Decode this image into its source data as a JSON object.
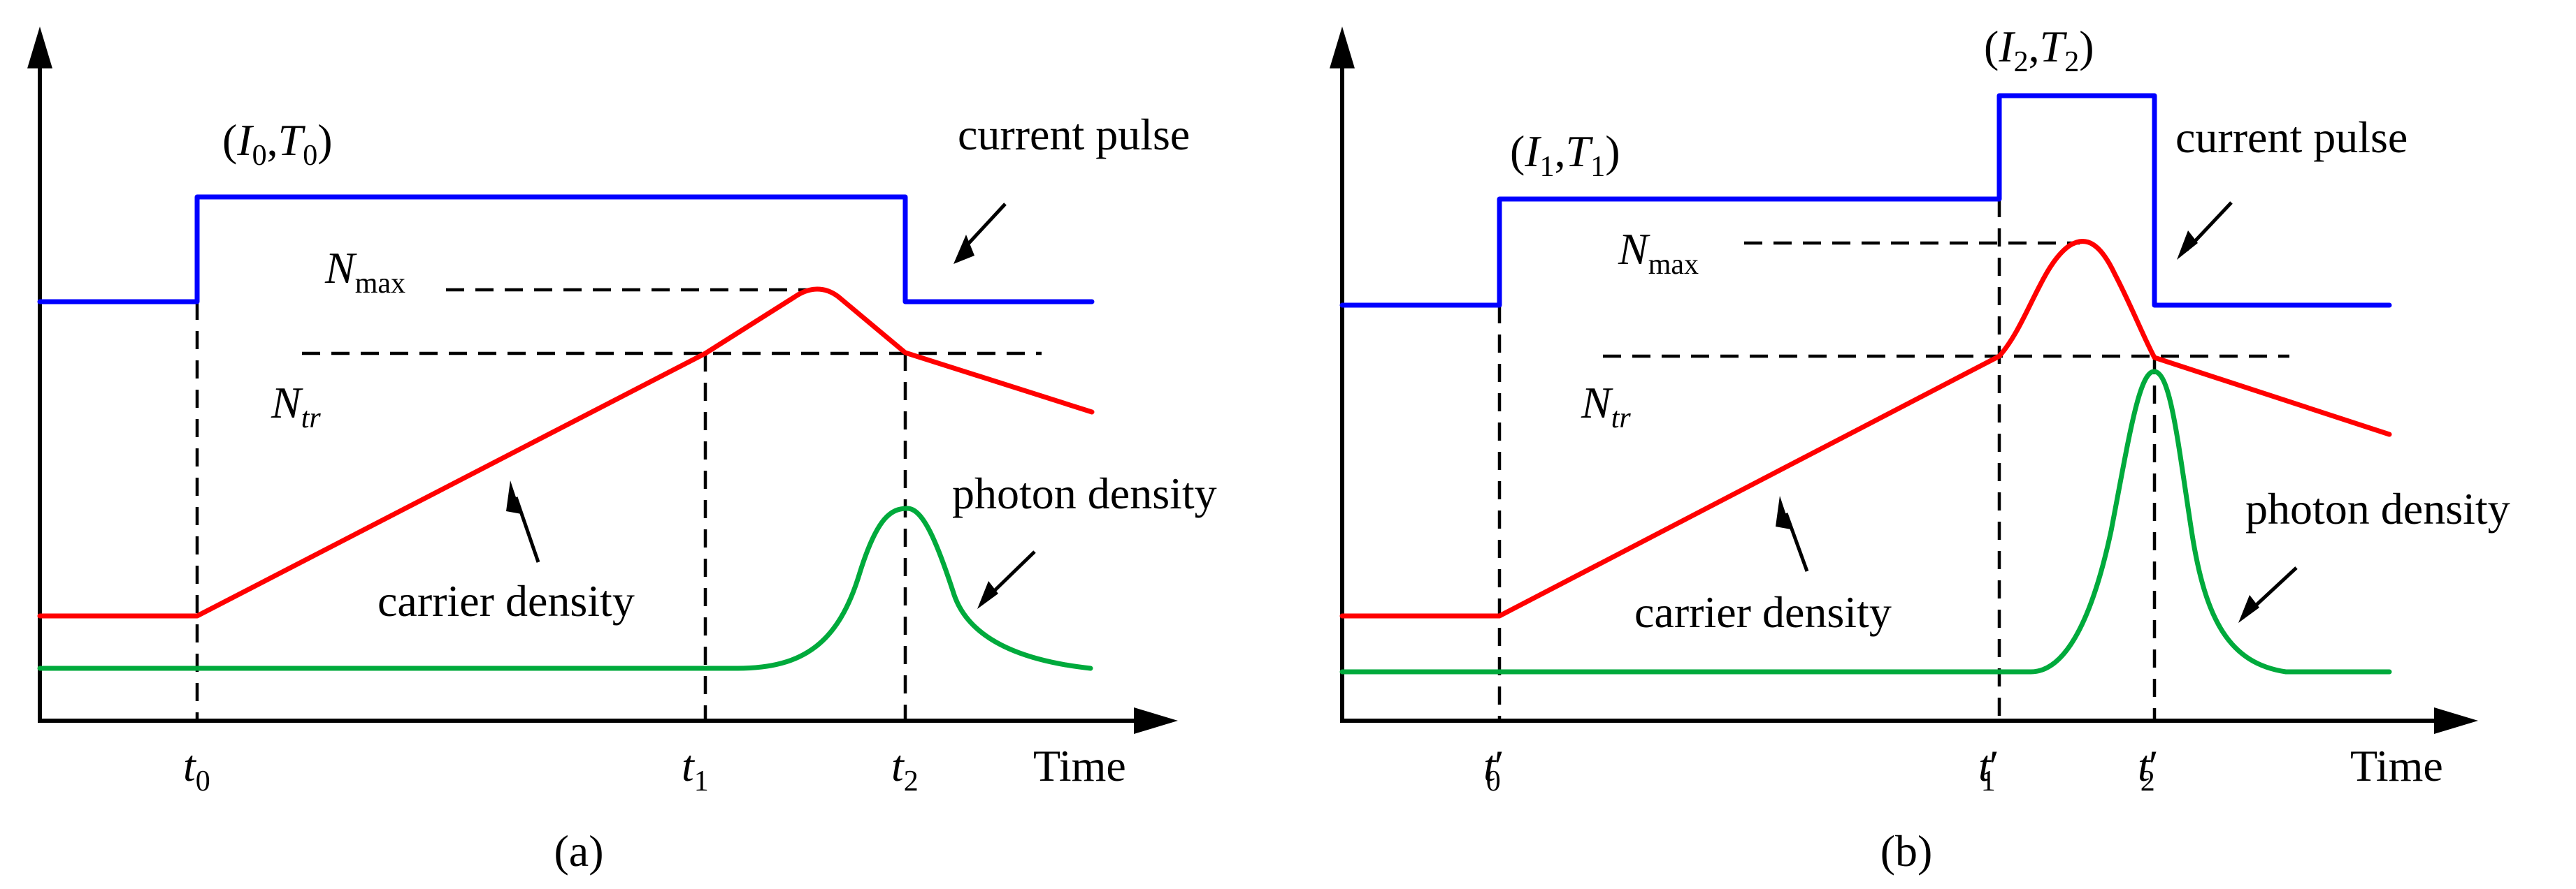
{
  "colors": {
    "current": "#0000ff",
    "carrier": "#ff0000",
    "photon": "#00aa3c",
    "axis": "#000000"
  },
  "panels": [
    {
      "id": "a",
      "caption": "(a)",
      "current_label": "current pulse",
      "carrier_label": "carrier density",
      "photon_label": "photon density",
      "time_label": "Time",
      "nmax_label": {
        "main": "N",
        "sub": "max"
      },
      "ntr_label": {
        "main": "N",
        "sub": "tr"
      },
      "pulse_labels": [
        {
          "open": "(",
          "i": "I",
          "i_sub": "0",
          "comma": ",",
          "t": "T",
          "t_sub": "0",
          "close": ")"
        }
      ],
      "time_ticks": [
        {
          "main": "t",
          "sub": "0",
          "prime": ""
        },
        {
          "main": "t",
          "sub": "1",
          "prime": ""
        },
        {
          "main": "t",
          "sub": "2",
          "prime": ""
        }
      ]
    },
    {
      "id": "b",
      "caption": "(b)",
      "current_label": "current pulse",
      "carrier_label": "carrier density",
      "photon_label": "photon density",
      "time_label": "Time",
      "nmax_label": {
        "main": "N",
        "sub": "max"
      },
      "ntr_label": {
        "main": "N",
        "sub": "tr"
      },
      "pulse_labels": [
        {
          "open": "(",
          "i": "I",
          "i_sub": "1",
          "comma": ",",
          "t": "T",
          "t_sub": "1",
          "close": ")"
        },
        {
          "open": "(",
          "i": "I",
          "i_sub": "2",
          "comma": ",",
          "t": "T",
          "t_sub": "2",
          "close": ")"
        }
      ],
      "time_ticks": [
        {
          "main": "t",
          "sub": "0",
          "prime": "′"
        },
        {
          "main": "t",
          "sub": "1",
          "prime": "′"
        },
        {
          "main": "t",
          "sub": "2",
          "prime": "′"
        }
      ]
    }
  ]
}
